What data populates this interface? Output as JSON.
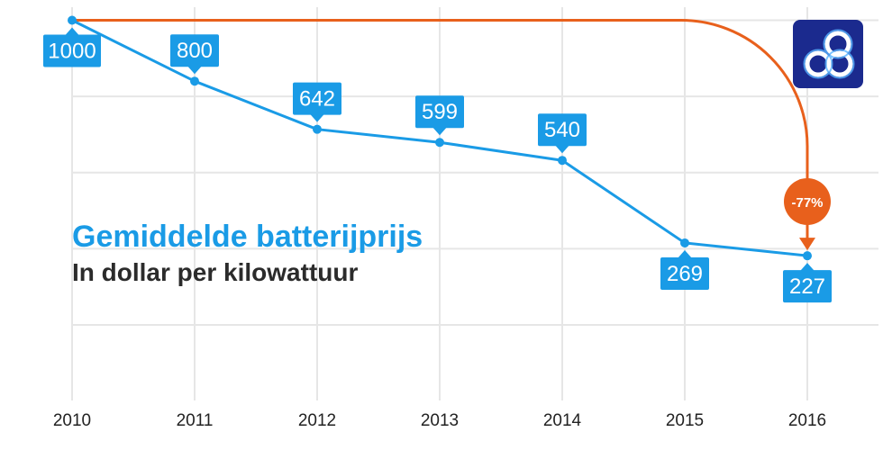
{
  "chart_data": {
    "type": "line",
    "title": "Gemiddelde batterijprijs",
    "subtitle": "In dollar per kilowattuur",
    "categories": [
      "2010",
      "2011",
      "2012",
      "2013",
      "2014",
      "2015",
      "2016"
    ],
    "series": [
      {
        "values": [
          1000,
          800,
          642,
          599,
          540,
          269,
          227
        ]
      }
    ],
    "ylim": [
      0,
      1000
    ],
    "grid": true,
    "annotation": {
      "label": "-77%",
      "from": "2010",
      "to": "2016"
    },
    "colors": {
      "line": "#1a9be6",
      "callout": "#1a9be6",
      "annotation": "#e8601c",
      "grid": "#e6e6e6"
    }
  },
  "logo": {
    "icon": "loop-logo-icon",
    "color": "#1b2a8e"
  }
}
